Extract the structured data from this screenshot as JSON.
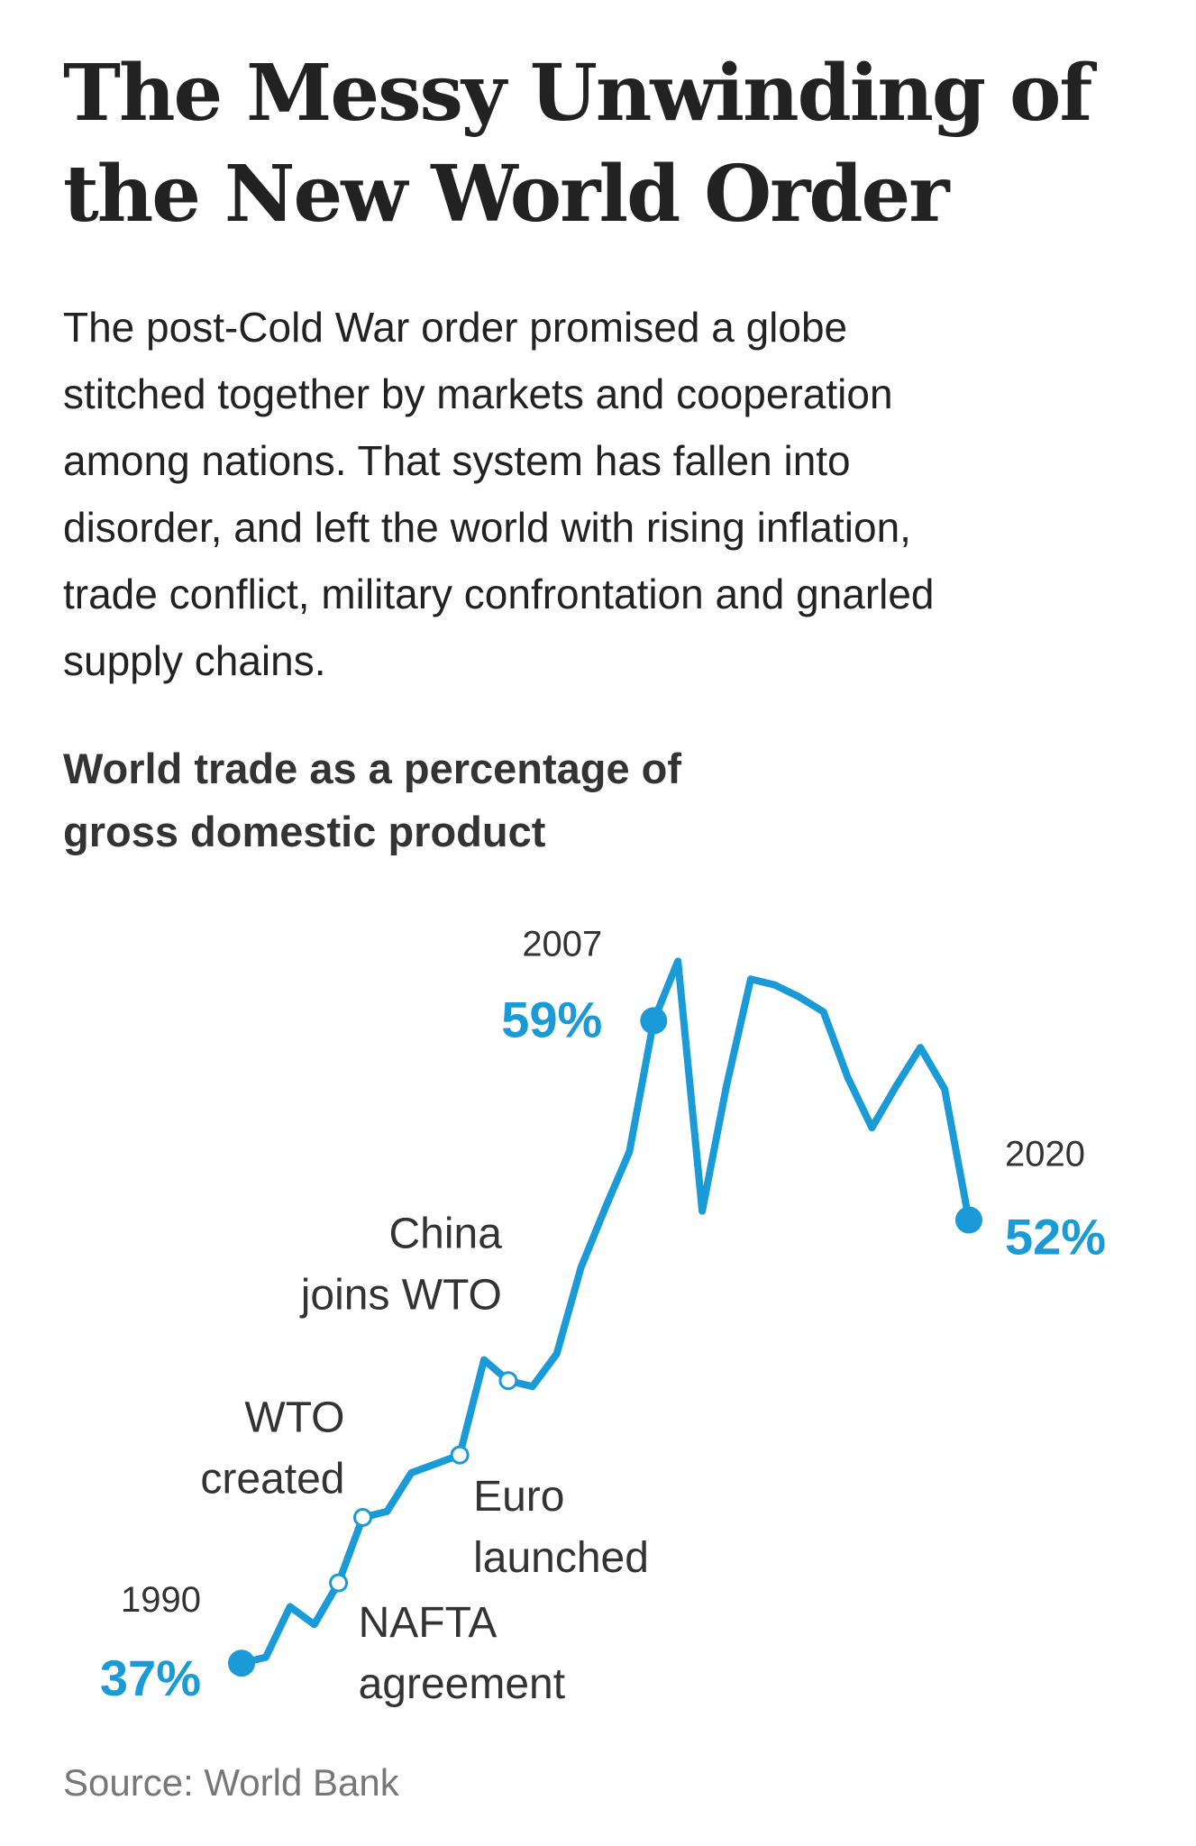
{
  "headline": {
    "line1": "The Messy Unwinding of",
    "line2": "the New World Order"
  },
  "dek": {
    "lines": [
      "The post-Cold War order promised a globe",
      "stitched together by markets and cooperation",
      "among nations. That system has fallen into",
      "disorder, and left the world with rising inflation,",
      "trade conflict, military confrontation and gnarled",
      "supply chains."
    ]
  },
  "chart_data": {
    "type": "line",
    "title": "World trade as a percentage of gross domestic product",
    "title_lines": [
      "World trade as a percentage of",
      "gross domestic product"
    ],
    "xlabel": "",
    "ylabel": "",
    "grid": false,
    "axes_visible": false,
    "line_color": "#1a9ad6",
    "x": [
      1990,
      1991,
      1992,
      1993,
      1994,
      1995,
      1996,
      1997,
      1998,
      1999,
      2000,
      2001,
      2002,
      2003,
      2004,
      2005,
      2006,
      2007,
      2008,
      2009,
      2010,
      2011,
      2012,
      2013,
      2014,
      2015,
      2016,
      2017,
      2018,
      2019,
      2020
    ],
    "series": [
      {
        "values": [
          37.1,
          37.3,
          39.0,
          38.4,
          39.8,
          42.0,
          42.2,
          43.5,
          43.8,
          44.1,
          47.3,
          46.6,
          46.4,
          47.5,
          50.4,
          52.4,
          54.3,
          58.7,
          60.7,
          52.3,
          56.5,
          60.1,
          59.9,
          59.5,
          59.0,
          56.8,
          55.1,
          56.5,
          57.8,
          56.4,
          52.0
        ]
      }
    ],
    "ylim": [
      36.5,
      61.5
    ],
    "endpoints": [
      {
        "year_label": "1990",
        "value_label": "37%",
        "x": 1990,
        "y": 37.1
      },
      {
        "year_label": "2007",
        "value_label": "59%",
        "x": 2007,
        "y": 58.7
      },
      {
        "year_label": "2020",
        "value_label": "52%",
        "x": 2020,
        "y": 52.0
      }
    ],
    "annotations": [
      {
        "lines": [
          "NAFTA",
          "agreement"
        ],
        "x": 1994,
        "y": 39.8
      },
      {
        "lines": [
          "WTO",
          "created"
        ],
        "x": 1995,
        "y": 42.0
      },
      {
        "lines": [
          "Euro",
          "launched"
        ],
        "x": 1999,
        "y": 44.1
      },
      {
        "lines": [
          "China",
          "joins WTO"
        ],
        "x": 2001,
        "y": 46.6
      }
    ]
  },
  "source": "Source: World Bank"
}
